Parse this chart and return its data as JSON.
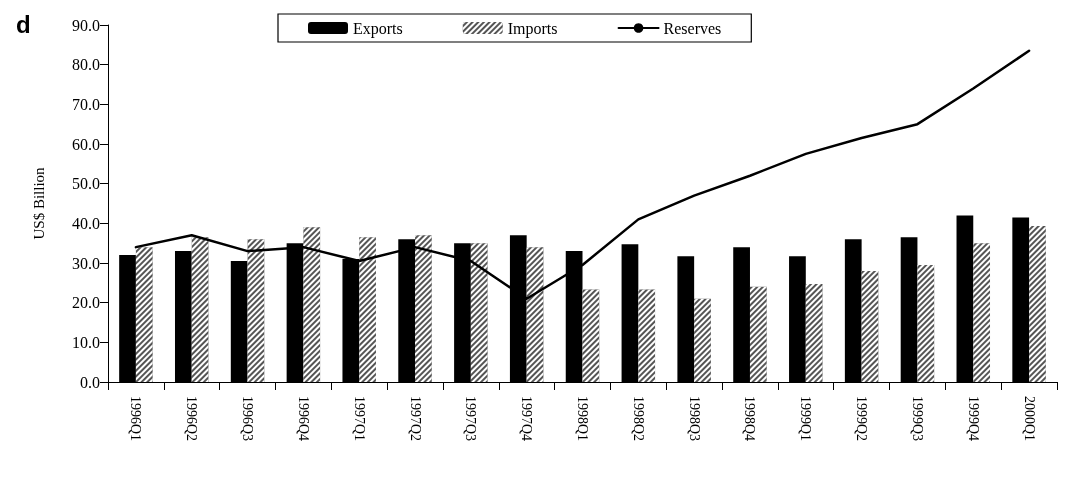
{
  "chart_data": {
    "type": "bar",
    "ylabel": "US$ Billion",
    "annotations": [
      "d"
    ],
    "categories": [
      "1996Q1",
      "1996Q2",
      "1996Q3",
      "1996Q4",
      "1997Q1",
      "1997Q2",
      "1997Q3",
      "1997Q4",
      "1998Q1",
      "1998Q2",
      "1998Q3",
      "1998Q4",
      "1999Q1",
      "1999Q2",
      "1999Q3",
      "1999Q4",
      "2000Q1"
    ],
    "series": [
      {
        "name": "Exports",
        "color": "#000000",
        "values": [
          32,
          33,
          30.5,
          35,
          31,
          36,
          35,
          37,
          33,
          34.7,
          31.7,
          34,
          31.7,
          36,
          36.5,
          42,
          41.5
        ]
      },
      {
        "name": "Imports",
        "color": "#555555",
        "values": [
          34,
          36.5,
          36,
          39,
          36.5,
          37,
          35,
          34,
          23.3,
          23.3,
          21,
          24,
          24.7,
          28,
          29.5,
          35,
          39.3
        ]
      },
      {
        "name": "Reserves",
        "type": "line",
        "color": "#000000",
        "values": [
          34,
          37,
          33,
          34,
          30.5,
          34,
          30.5,
          21,
          29.5,
          41,
          47,
          52,
          57.5,
          61.5,
          65,
          74,
          83.5
        ]
      }
    ],
    "ylim": [
      0,
      90
    ],
    "yticks": [
      {
        "value": 0,
        "label": "0.0"
      },
      {
        "value": 10,
        "label": "10.0"
      },
      {
        "value": 20,
        "label": "20.0"
      },
      {
        "value": 30,
        "label": "30.0"
      },
      {
        "value": 40,
        "label": "40.0"
      },
      {
        "value": 50,
        "label": "50.0"
      },
      {
        "value": 60,
        "label": "60.0"
      },
      {
        "value": 70,
        "label": "70.0"
      },
      {
        "value": 80,
        "label": "80.0"
      },
      {
        "value": 90,
        "label": "90.0"
      }
    ],
    "grid": false,
    "legend": "top",
    "marker": "none",
    "line_style": "solid"
  }
}
